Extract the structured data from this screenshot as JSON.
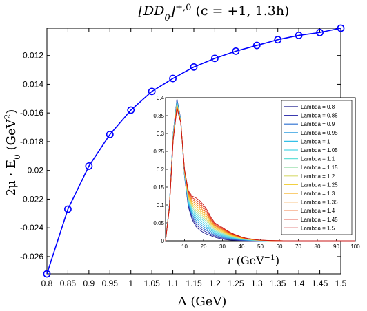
{
  "chart_data": [
    {
      "type": "line",
      "title": "[DD0]±,0 (c = +1, 1.3h)",
      "title_parts": {
        "base": "[DD",
        "sub": "0",
        "close": "]",
        "sup": "±,0",
        "rest": " (c = +1, 1.3h)"
      },
      "xlabel": "Λ (GeV)",
      "ylabel": "2μ · E0 (GeV2)",
      "ylabel_parts": {
        "a": "2μ · E",
        "sub": "0",
        "b": " (GeV",
        "sup": "2",
        "c": ")"
      },
      "xlim": [
        0.8,
        1.5
      ],
      "ylim": [
        -0.0272,
        -0.0101
      ],
      "xticks": [
        0.8,
        0.85,
        0.9,
        0.95,
        1,
        1.05,
        1.1,
        1.15,
        1.2,
        1.25,
        1.3,
        1.35,
        1.4,
        1.45,
        1.5
      ],
      "xtick_labels": [
        "0.8",
        "0.85",
        "0.9",
        "0.95",
        "1",
        "1.05",
        "1.1",
        "1.15",
        "1.2",
        "1.25",
        "1.3",
        "1.35",
        "1.4",
        "1.45",
        "1.5"
      ],
      "yticks": [
        -0.026,
        -0.024,
        -0.022,
        -0.02,
        -0.018,
        -0.016,
        -0.014,
        -0.012
      ],
      "ytick_labels": [
        "-0.026",
        "-0.024",
        "-0.022",
        "-0.02",
        "-0.018",
        "-0.016",
        "-0.014",
        "-0.012"
      ],
      "grid": false,
      "series": [
        {
          "color": "#0000ff",
          "marker": "circle",
          "x": [
            0.8,
            0.85,
            0.9,
            0.95,
            1.0,
            1.05,
            1.1,
            1.15,
            1.2,
            1.25,
            1.3,
            1.35,
            1.4,
            1.45,
            1.5
          ],
          "y": [
            -0.0272,
            -0.0227,
            -0.0197,
            -0.0175,
            -0.0158,
            -0.0145,
            -0.0136,
            -0.0128,
            -0.0122,
            -0.0117,
            -0.0113,
            -0.0109,
            -0.0106,
            -0.0104,
            -0.0101
          ]
        }
      ]
    },
    {
      "type": "line",
      "title": "",
      "xlabel": "r (GeV−1)",
      "xlabel_parts": {
        "a": "r",
        "b": " (GeV",
        "sup": "−1",
        "c": ")"
      },
      "ylabel": "",
      "xlim": [
        0,
        100
      ],
      "ylim": [
        0,
        0.4
      ],
      "xticks": [
        10,
        20,
        30,
        40,
        50,
        60,
        70,
        80,
        90,
        100
      ],
      "xtick_labels": [
        "10",
        "20",
        "30",
        "40",
        "50",
        "60",
        "70",
        "80",
        "90",
        "100"
      ],
      "yticks": [
        0,
        0.05,
        0.1,
        0.15,
        0.2,
        0.25,
        0.3,
        0.35,
        0.4
      ],
      "ytick_labels": [
        "0",
        "0.05",
        "0.1",
        "0.15",
        "0.2",
        "0.25",
        "0.3",
        "0.35",
        "0.4"
      ],
      "legend_position": "top-right",
      "grid": false,
      "x": [
        0,
        2,
        4,
        6,
        8,
        10,
        12,
        14,
        16,
        18,
        20,
        22,
        24,
        26,
        28,
        30,
        32,
        34,
        36,
        38,
        40,
        42,
        44,
        46,
        48,
        50,
        52,
        54,
        56,
        58,
        60,
        62,
        64,
        66,
        68,
        70,
        72,
        74,
        76,
        78,
        80,
        82,
        84,
        86,
        88,
        90,
        92,
        94,
        96,
        98,
        100
      ],
      "series": [
        {
          "name": "Lambda = 0.8",
          "color": "#1a1a8c",
          "lambda": 0.8
        },
        {
          "name": "Lambda = 0.85",
          "color": "#3a3ab0",
          "lambda": 0.85
        },
        {
          "name": "Lambda = 0.9",
          "color": "#2a6fd0",
          "lambda": 0.9
        },
        {
          "name": "Lambda = 0.95",
          "color": "#2f9ee0",
          "lambda": 0.95
        },
        {
          "name": "Lambda = 1",
          "color": "#35c0e8",
          "lambda": 1.0
        },
        {
          "name": "Lambda = 1.05",
          "color": "#4fd6e8",
          "lambda": 1.05
        },
        {
          "name": "Lambda = 1.1",
          "color": "#66e0d8",
          "lambda": 1.1
        },
        {
          "name": "Lambda = 1.15",
          "color": "#9fe0b0",
          "lambda": 1.15
        },
        {
          "name": "Lambda = 1.2",
          "color": "#d8dc70",
          "lambda": 1.2
        },
        {
          "name": "Lambda = 1.25",
          "color": "#f2d040",
          "lambda": 1.25
        },
        {
          "name": "Lambda = 1.3",
          "color": "#f7b020",
          "lambda": 1.3
        },
        {
          "name": "Lambda = 1.35",
          "color": "#f58a10",
          "lambda": 1.35
        },
        {
          "name": "Lambda = 1.4",
          "color": "#ef5a10",
          "lambda": 1.4
        },
        {
          "name": "Lambda = 1.45",
          "color": "#e02a18",
          "lambda": 1.45
        },
        {
          "name": "Lambda = 1.5",
          "color": "#c81818",
          "lambda": 1.5
        }
      ],
      "curve_low": [
        0,
        0.1,
        0.3,
        0.397,
        0.34,
        0.18,
        0.095,
        0.06,
        0.04,
        0.03,
        0.023,
        0.018,
        0.014,
        0.01,
        0.007,
        0.005,
        0.003,
        0.002,
        0.0015,
        0.001,
        0.0007,
        0.0005,
        0.0003,
        0.0002,
        0.0001,
        0,
        0,
        0,
        0,
        0,
        0,
        0,
        0,
        0,
        0,
        0,
        0,
        0,
        0,
        0,
        0,
        0,
        0,
        0,
        0,
        0,
        0,
        0,
        0,
        0,
        0
      ],
      "curve_high": [
        0,
        0.09,
        0.28,
        0.37,
        0.33,
        0.2,
        0.14,
        0.125,
        0.12,
        0.112,
        0.1,
        0.085,
        0.065,
        0.05,
        0.043,
        0.037,
        0.03,
        0.024,
        0.019,
        0.015,
        0.011,
        0.008,
        0.006,
        0.0045,
        0.003,
        0.002,
        0.0015,
        0.001,
        0.0006,
        0.0004,
        0.0003,
        0.0002,
        0.0001,
        0,
        0,
        0,
        0,
        0,
        0,
        0,
        0,
        0,
        0,
        0,
        0,
        0,
        0,
        0,
        0,
        0,
        0
      ]
    }
  ]
}
